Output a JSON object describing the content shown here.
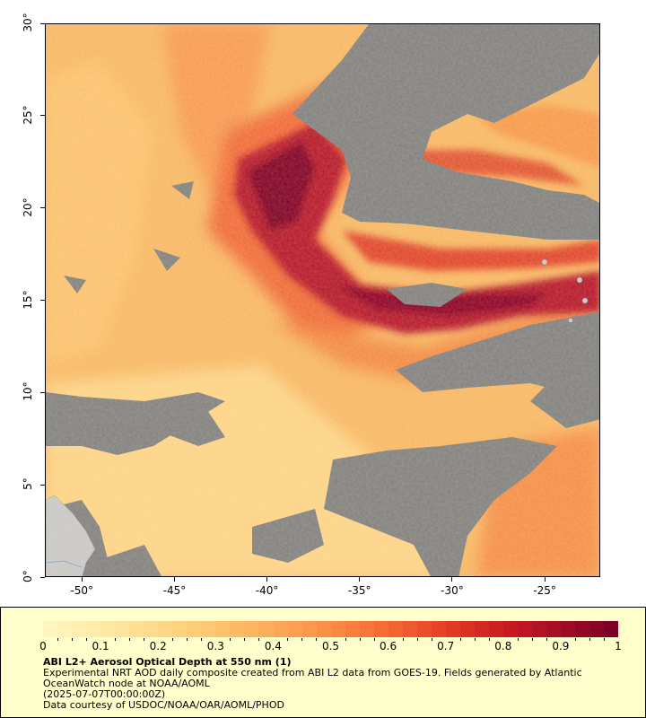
{
  "map": {
    "x_ticks": [
      "-50°",
      "-45°",
      "-40°",
      "-35°",
      "-30°",
      "-25°"
    ],
    "y_ticks": [
      "30°",
      "25°",
      "20°",
      "15°",
      "10°",
      "5°",
      "0°"
    ],
    "lon_range": [
      -52,
      -22
    ],
    "lat_range": [
      0,
      30
    ],
    "colors": {
      "no_data": "#808080",
      "land": "#c8c8c8",
      "background_aod": "#f7b865"
    }
  },
  "legend": {
    "ticks": [
      "0",
      "0.1",
      "0.2",
      "0.3",
      "0.4",
      "0.5",
      "0.6",
      "0.7",
      "0.8",
      "0.9",
      "1"
    ],
    "colormap": [
      "#fff5c0",
      "#feeaa6",
      "#fedc8d",
      "#fdca73",
      "#fdb45e",
      "#fc9a4c",
      "#fb7c3c",
      "#f25a2e",
      "#e03524",
      "#c8191f",
      "#a30d25",
      "#7f0026"
    ],
    "title": "ABI L2+ Aerosol Optical Depth at 550 nm (1)",
    "description": "Experimental NRT AOD daily composite created from ABI L2 data from GOES-19. Fields generated by Atlantic OceanWatch node at NOAA/AOML",
    "timestamp": "(2025-07-07T00:00:00Z)",
    "credit": "Data courtesy of USDOC/NOAA/OAR/AOML/PHOD"
  }
}
